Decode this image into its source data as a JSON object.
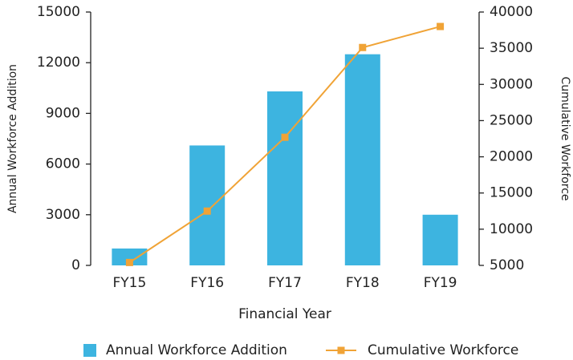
{
  "chart_data": {
    "type": "bar_line",
    "categories": [
      "FY15",
      "FY16",
      "FY17",
      "FY18",
      "FY19"
    ],
    "series": [
      {
        "name": "Annual Workforce Addition",
        "color": "#3db4e0",
        "type": "bar",
        "values": [
          1000,
          7100,
          10300,
          12500,
          3000
        ]
      },
      {
        "name": "Cumulative Workforce",
        "color": "#f0a336",
        "type": "line",
        "axis": "y2",
        "values": [
          5400,
          12500,
          22700,
          35100,
          38000
        ]
      }
    ],
    "xlabel": "Financial Year",
    "ylabel": "Annual Workforce Addition",
    "y2label": "Cumulative Workforce",
    "ylim": [
      0,
      15000
    ],
    "yticks": [
      0,
      3000,
      6000,
      9000,
      12000,
      15000
    ],
    "y2lim": [
      5000,
      40000
    ],
    "y2ticks": [
      5000,
      10000,
      15000,
      20000,
      25000,
      30000,
      35000,
      40000
    ],
    "legend": "bottom"
  }
}
